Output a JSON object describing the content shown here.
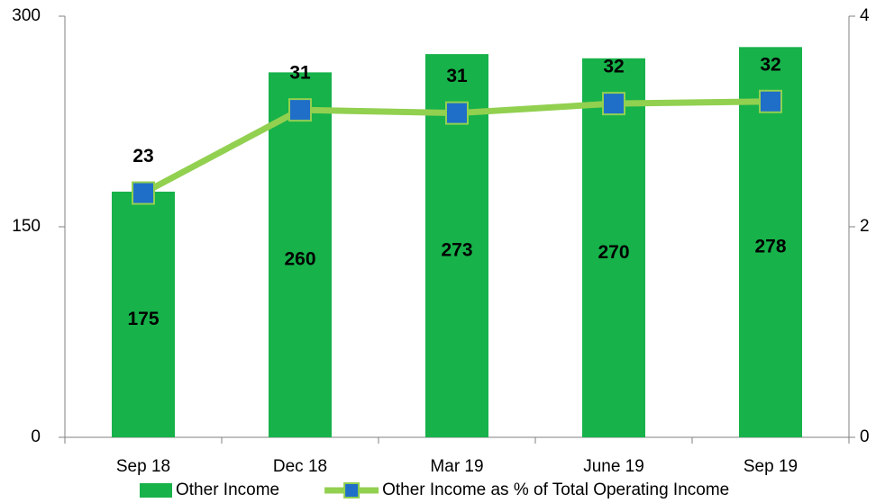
{
  "chart_data": {
    "type": "bar_line",
    "categories": [
      "Sep 18",
      "Dec 18",
      "Mar 19",
      "June 19",
      "Sep 19"
    ],
    "series": [
      {
        "name": "Other Income",
        "type": "bar",
        "color": "#17b24a",
        "values": [
          175,
          260,
          273,
          270,
          278
        ]
      },
      {
        "name": "Other Income as % of Total Operating Income",
        "type": "line",
        "axis": "y2",
        "color": "#92d050",
        "marker_color": "#1f6fc8",
        "values": [
          2.32,
          3.11,
          3.08,
          3.17,
          3.19
        ],
        "value_labels": [
          "23",
          "31",
          "31",
          "32",
          "32"
        ]
      }
    ],
    "ylim": [
      0,
      300
    ],
    "yticks": [
      0,
      150,
      300
    ],
    "y2lim": [
      0,
      4
    ],
    "y2ticks": [
      0,
      2,
      4
    ],
    "legend": "bottom"
  }
}
